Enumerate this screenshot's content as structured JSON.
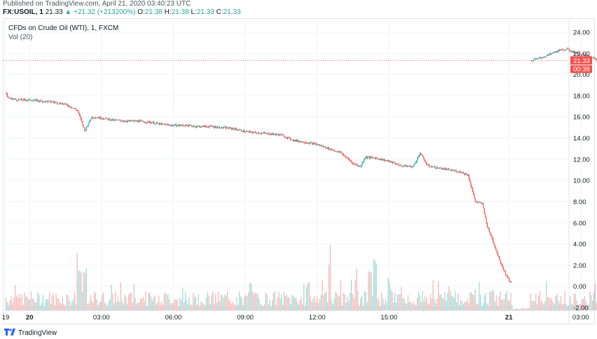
{
  "header": {
    "published": "Published on TradingView.com, April 21, 2020 03:40:23 UTC",
    "symbol": "FX:USOIL, 1",
    "last": "21.33",
    "change_arrow": "▲",
    "change": "+21.32 (+213200%)",
    "o_label": "O:",
    "o": "21.38",
    "h_label": "H:",
    "h": "21.38",
    "l_label": "L:",
    "l": "21.33",
    "c_label": "C:",
    "c": "21.33"
  },
  "legend": {
    "title": "CFDs on Crude Oil (WTI), 1, FXCM",
    "vol": "Vol (20)"
  },
  "price_tag": {
    "value": "21.33",
    "countdown": "00:39"
  },
  "footer": {
    "brand": "TradingView",
    "logo_icon": "tradingview-logo-icon"
  },
  "colors": {
    "up": "#26a69a",
    "down": "#ef5350",
    "grid": "#f0f3fa",
    "tag": "#ef5350"
  },
  "chart_data": {
    "type": "candlestick",
    "title": "CFDs on Crude Oil (WTI), 1, FXCM",
    "ylim": [
      -2,
      25
    ],
    "y_ticks": [
      "24.00",
      "22.00",
      "20.00",
      "18.00",
      "16.00",
      "14.00",
      "12.00",
      "10.00",
      "8.00",
      "6.00",
      "4.00",
      "2.00",
      "0.00",
      "-2.00"
    ],
    "y_tick_values": [
      24,
      22,
      20,
      18,
      16,
      14,
      12,
      10,
      8,
      6,
      4,
      2,
      0,
      -2
    ],
    "x_labels": [
      {
        "t": 0,
        "label": "19",
        "bold": false
      },
      {
        "t": 1.0,
        "label": "20",
        "bold": true
      },
      {
        "t": 4.0,
        "label": "03:00",
        "bold": false
      },
      {
        "t": 7.0,
        "label": "06:00",
        "bold": false
      },
      {
        "t": 10.0,
        "label": "09:00",
        "bold": false
      },
      {
        "t": 13.0,
        "label": "12:00",
        "bold": false
      },
      {
        "t": 16.0,
        "label": "15:00",
        "bold": false
      },
      {
        "t": 21.0,
        "label": "21",
        "bold": true
      },
      {
        "t": 24.0,
        "label": "03:00",
        "bold": false
      }
    ],
    "x_range_hours": [
      0,
      25.7
    ],
    "price_path_day1": [
      [
        0,
        18.3
      ],
      [
        0.1,
        17.8
      ],
      [
        0.5,
        17.6
      ],
      [
        1.0,
        17.6
      ],
      [
        1.5,
        17.5
      ],
      [
        2.0,
        17.4
      ],
      [
        2.5,
        17.2
      ],
      [
        3.0,
        16.6
      ],
      [
        3.3,
        14.7
      ],
      [
        3.6,
        16.0
      ],
      [
        4.0,
        15.9
      ],
      [
        4.5,
        15.7
      ],
      [
        5.0,
        15.6
      ],
      [
        5.5,
        15.6
      ],
      [
        6.0,
        15.5
      ],
      [
        6.5,
        15.3
      ],
      [
        7.0,
        15.2
      ],
      [
        7.5,
        15.2
      ],
      [
        8.0,
        15.1
      ],
      [
        8.5,
        15.1
      ],
      [
        9.0,
        15.0
      ],
      [
        9.5,
        14.9
      ],
      [
        10.0,
        14.6
      ],
      [
        10.5,
        14.5
      ],
      [
        11.0,
        14.4
      ],
      [
        11.5,
        14.3
      ],
      [
        12.0,
        13.8
      ],
      [
        12.5,
        13.6
      ],
      [
        13.0,
        13.4
      ],
      [
        13.5,
        13.0
      ],
      [
        14.0,
        12.6
      ],
      [
        14.5,
        11.6
      ],
      [
        14.8,
        11.3
      ],
      [
        15.0,
        12.2
      ],
      [
        15.5,
        12.1
      ],
      [
        16.0,
        11.8
      ],
      [
        16.5,
        11.4
      ],
      [
        17.0,
        11.3
      ],
      [
        17.3,
        12.6
      ],
      [
        17.6,
        11.4
      ],
      [
        18.0,
        11.2
      ],
      [
        18.5,
        11.0
      ],
      [
        19.0,
        10.8
      ],
      [
        19.3,
        10.5
      ],
      [
        19.6,
        8.0
      ],
      [
        19.9,
        7.8
      ],
      [
        20.1,
        5.6
      ],
      [
        20.3,
        4.5
      ],
      [
        20.5,
        3.2
      ],
      [
        20.7,
        2.0
      ],
      [
        20.9,
        1.0
      ],
      [
        21.1,
        0.3
      ]
    ],
    "price_path_day2": [
      [
        21.9,
        21.3
      ],
      [
        22.5,
        21.7
      ],
      [
        23.0,
        22.2
      ],
      [
        23.4,
        22.4
      ],
      [
        23.8,
        22.0
      ],
      [
        24.2,
        21.8
      ],
      [
        24.6,
        21.5
      ],
      [
        25.0,
        21.1
      ],
      [
        25.4,
        21.2
      ],
      [
        25.7,
        21.33
      ]
    ],
    "last_price": 21.33
  }
}
